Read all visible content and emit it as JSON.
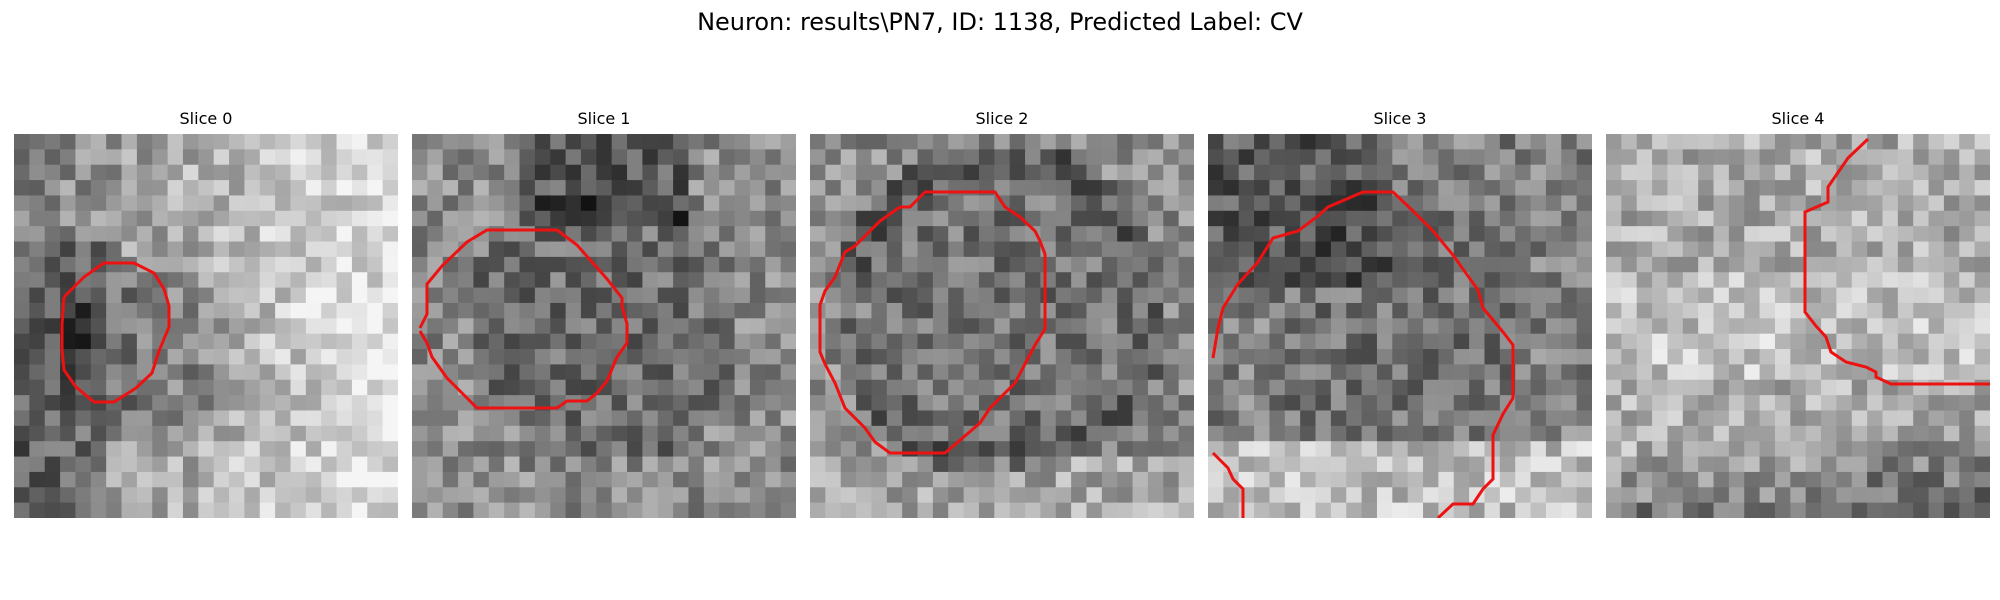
{
  "figure": {
    "title": "Neuron: results\\PN7, ID: 1138, Predicted Label: CV"
  },
  "panels": [
    {
      "title": "Slice 0",
      "seed": 11,
      "bias": 0.15
    },
    {
      "title": "Slice 1",
      "seed": 23,
      "bias": 0.0
    },
    {
      "title": "Slice 2",
      "seed": 37,
      "bias": 0.0
    },
    {
      "title": "Slice 3",
      "seed": 41,
      "bias": 0.0
    },
    {
      "title": "Slice 4",
      "seed": 59,
      "bias": 0.1
    }
  ],
  "contour_color": "#ee1111",
  "colormap": "gray"
}
